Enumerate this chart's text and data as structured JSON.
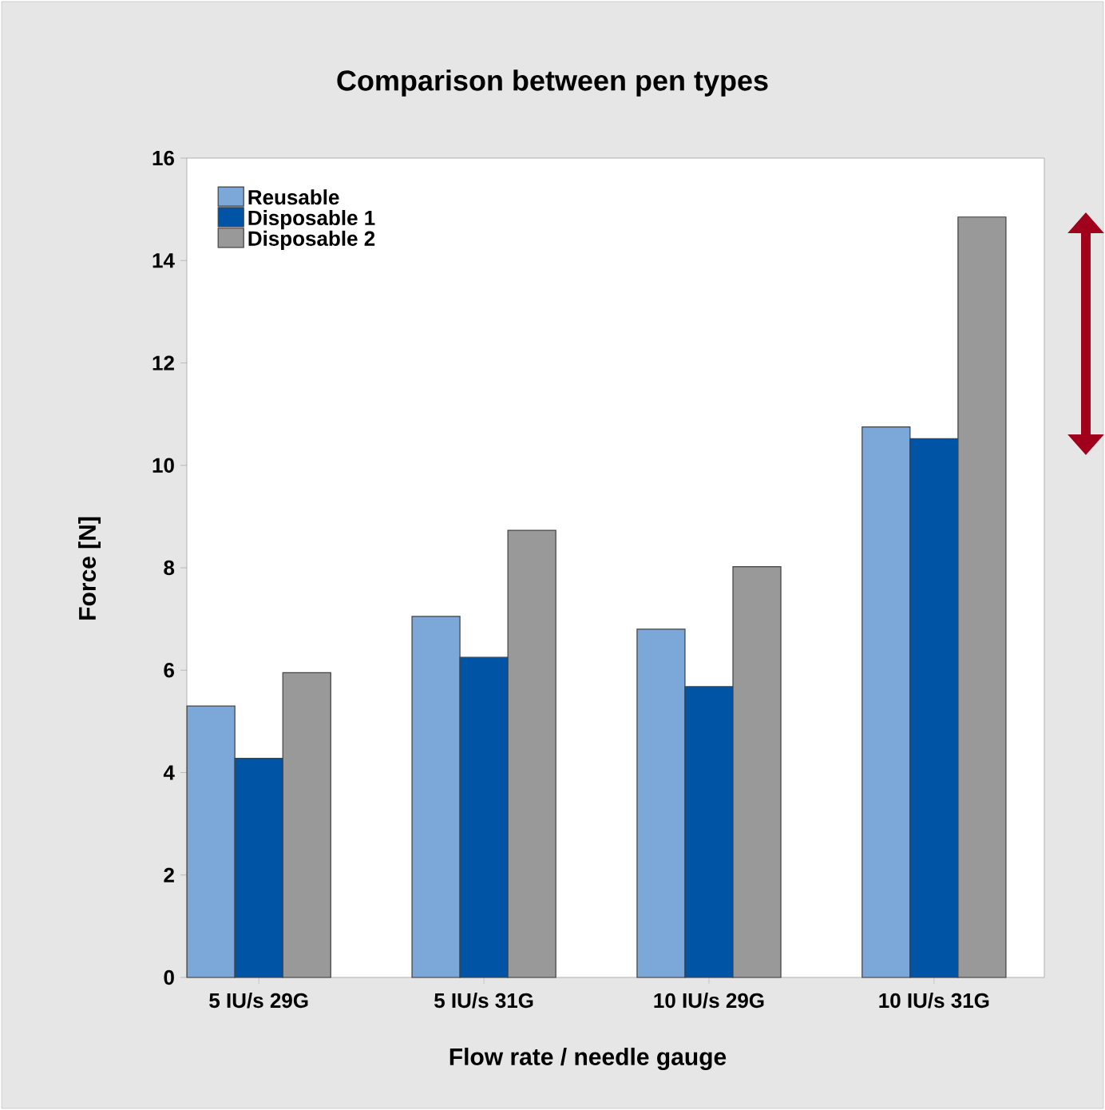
{
  "chart_data": {
    "type": "bar",
    "title": "Comparison between pen types",
    "xlabel": "Flow rate / needle gauge",
    "ylabel": "Force [N]",
    "categories": [
      "5 IU/s 29G",
      "5 IU/s 31G",
      "10 IU/s 29G",
      "10 IU/s 31G"
    ],
    "series": [
      {
        "name": "Reusable",
        "color": "#7ba7d9",
        "values": [
          5.3,
          7.05,
          6.8,
          10.75
        ]
      },
      {
        "name": "Disposable 1",
        "color": "#0054a6",
        "values": [
          4.28,
          6.25,
          5.68,
          10.52
        ]
      },
      {
        "name": "Disposable 2",
        "color": "#999999",
        "values": [
          5.95,
          8.73,
          8.02,
          14.85
        ]
      }
    ],
    "ylim": [
      0,
      16
    ],
    "yticks": [
      0,
      2,
      4,
      6,
      8,
      10,
      12,
      14,
      16
    ],
    "grid": false,
    "legend": "top left"
  }
}
